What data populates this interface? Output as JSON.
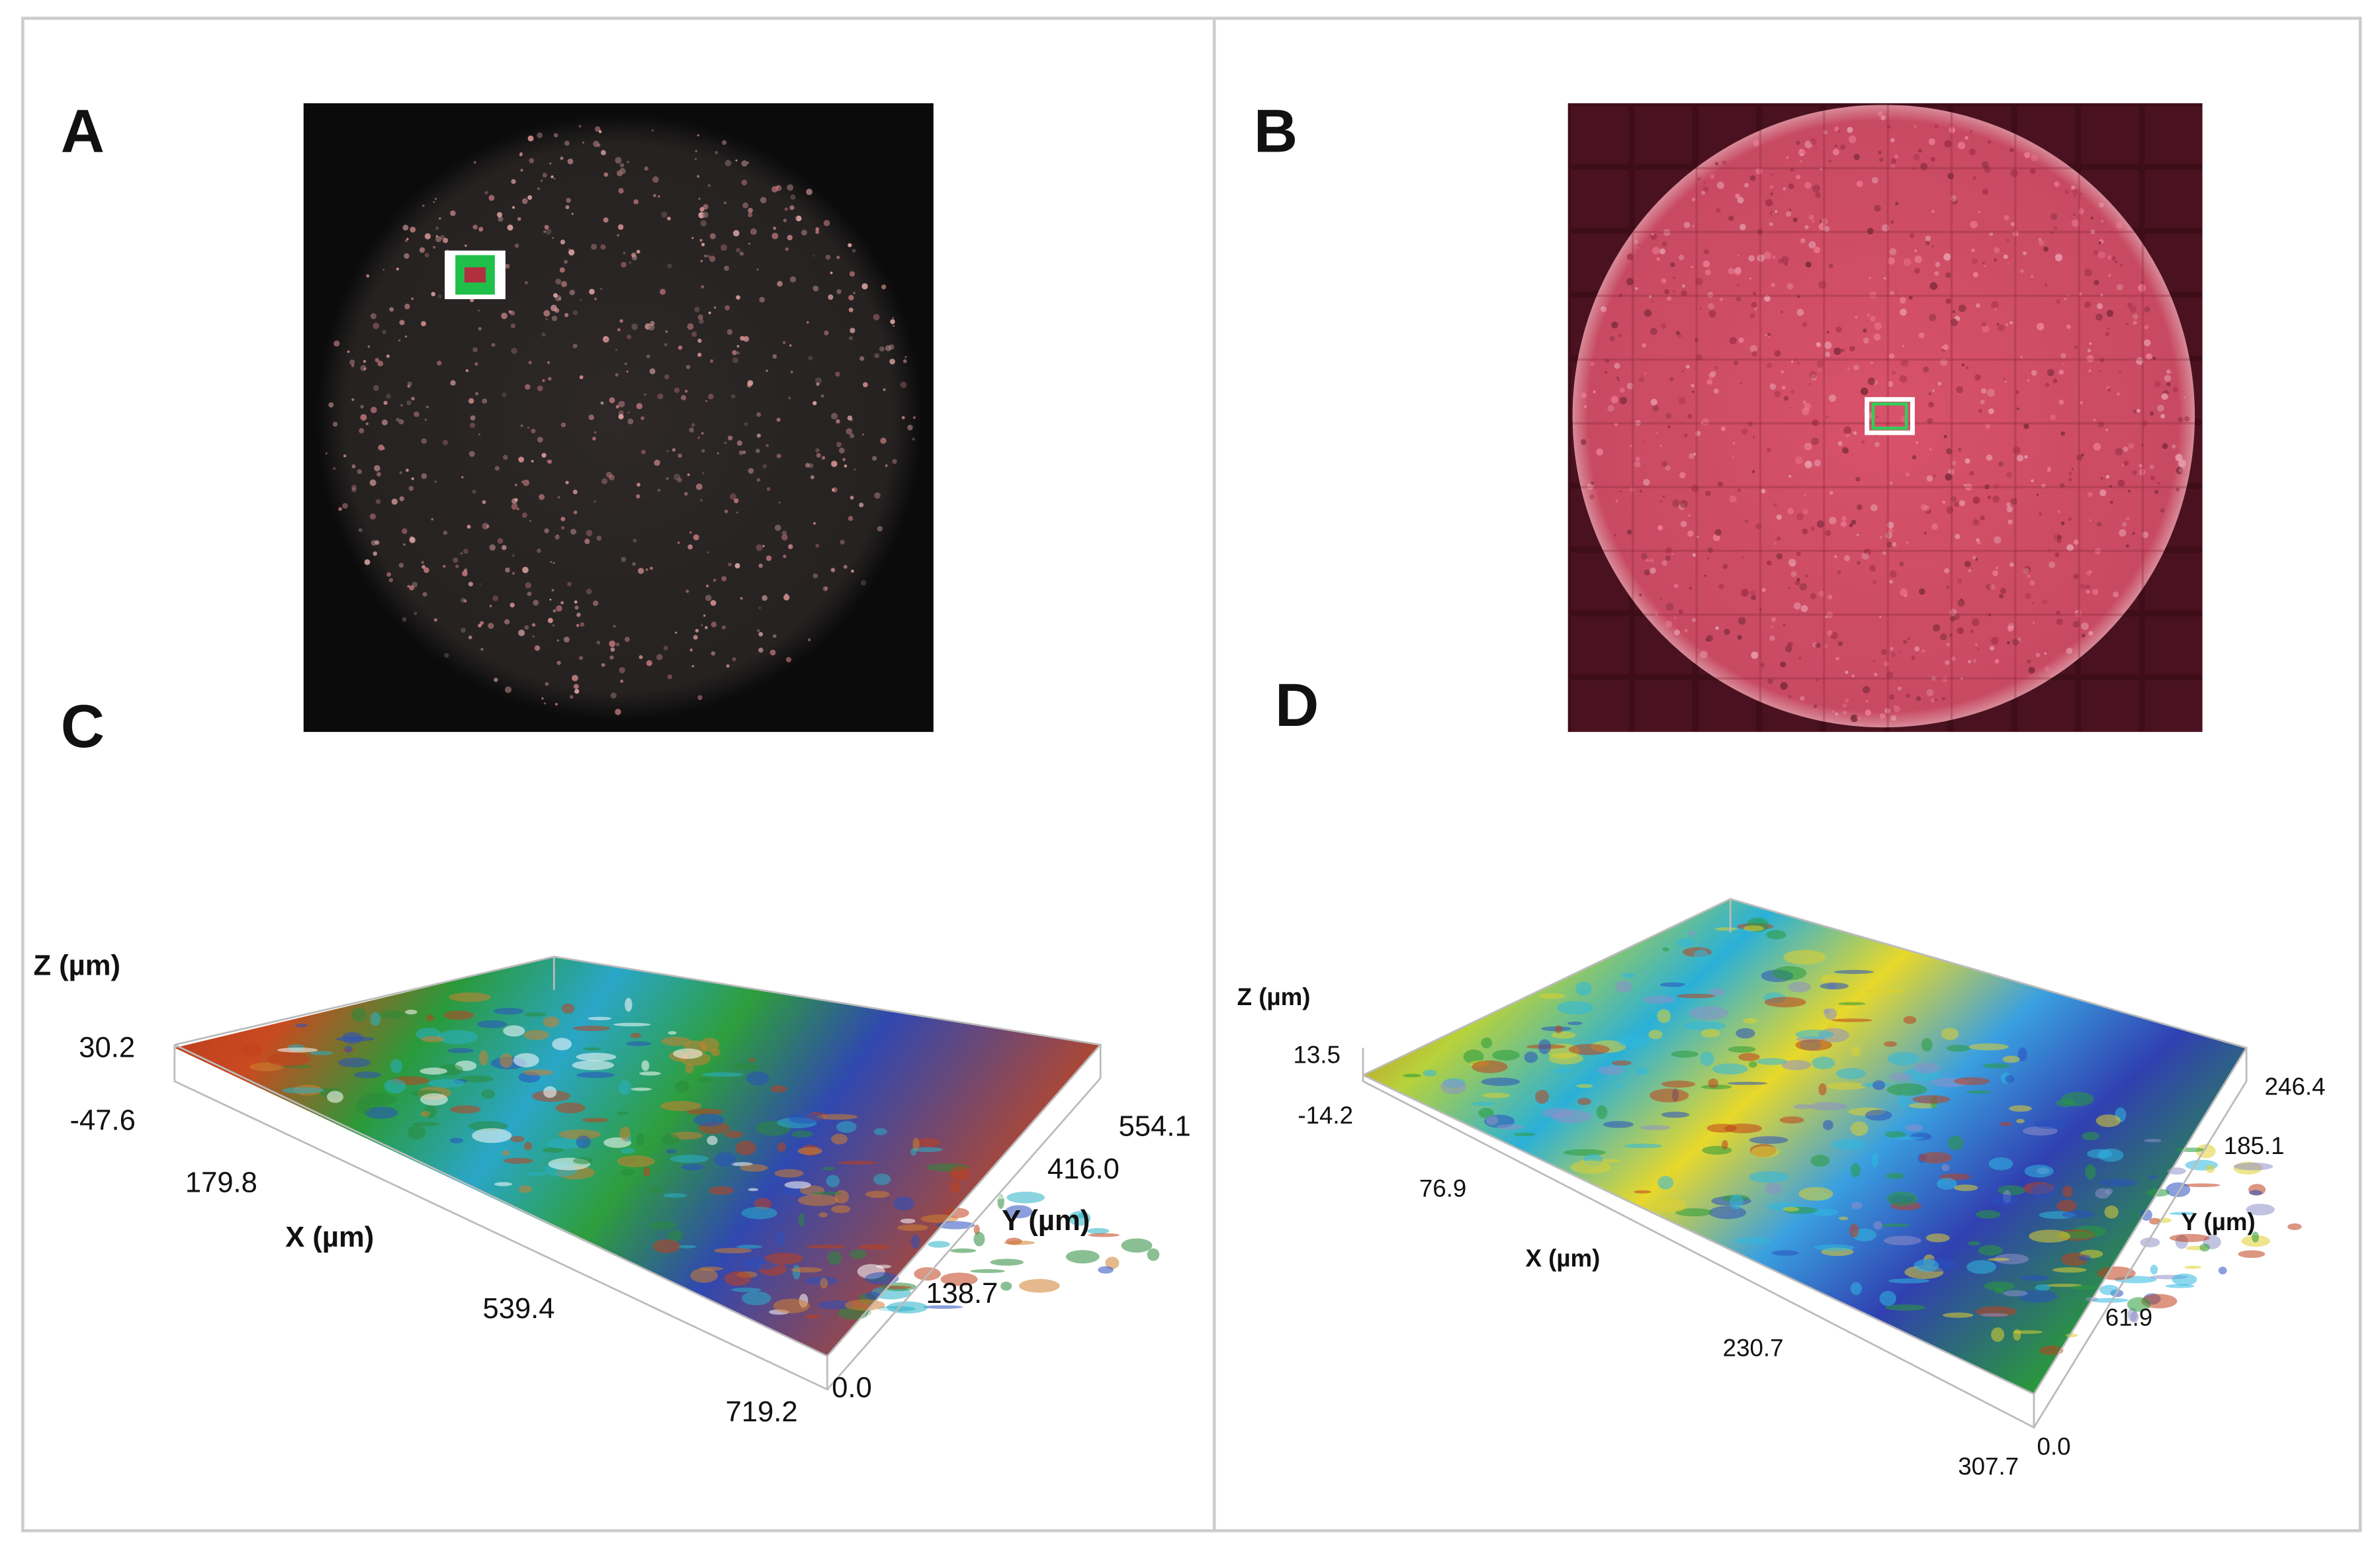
{
  "panels": [
    {
      "label": "A"
    },
    {
      "label": "B"
    },
    {
      "label": "C",
      "z_label": "Z (µm)",
      "z_ticks": [
        "30.2",
        "-47.6"
      ],
      "x_label": "X (µm)",
      "x_ticks": [
        "179.8",
        "539.4",
        "719.2"
      ],
      "y_label": "Y (µm)",
      "y_ticks": [
        "554.1",
        "416.0",
        "138.7",
        "0.0"
      ]
    },
    {
      "label": "D",
      "z_label": "Z (µm)",
      "z_ticks": [
        "13.5",
        "-14.2"
      ],
      "x_label": "X (µm)",
      "x_ticks": [
        "76.9",
        "230.7",
        "307.7"
      ],
      "y_label": "Y (µm)",
      "y_ticks": [
        "246.4",
        "185.1",
        "61.9",
        "0.0"
      ]
    }
  ]
}
